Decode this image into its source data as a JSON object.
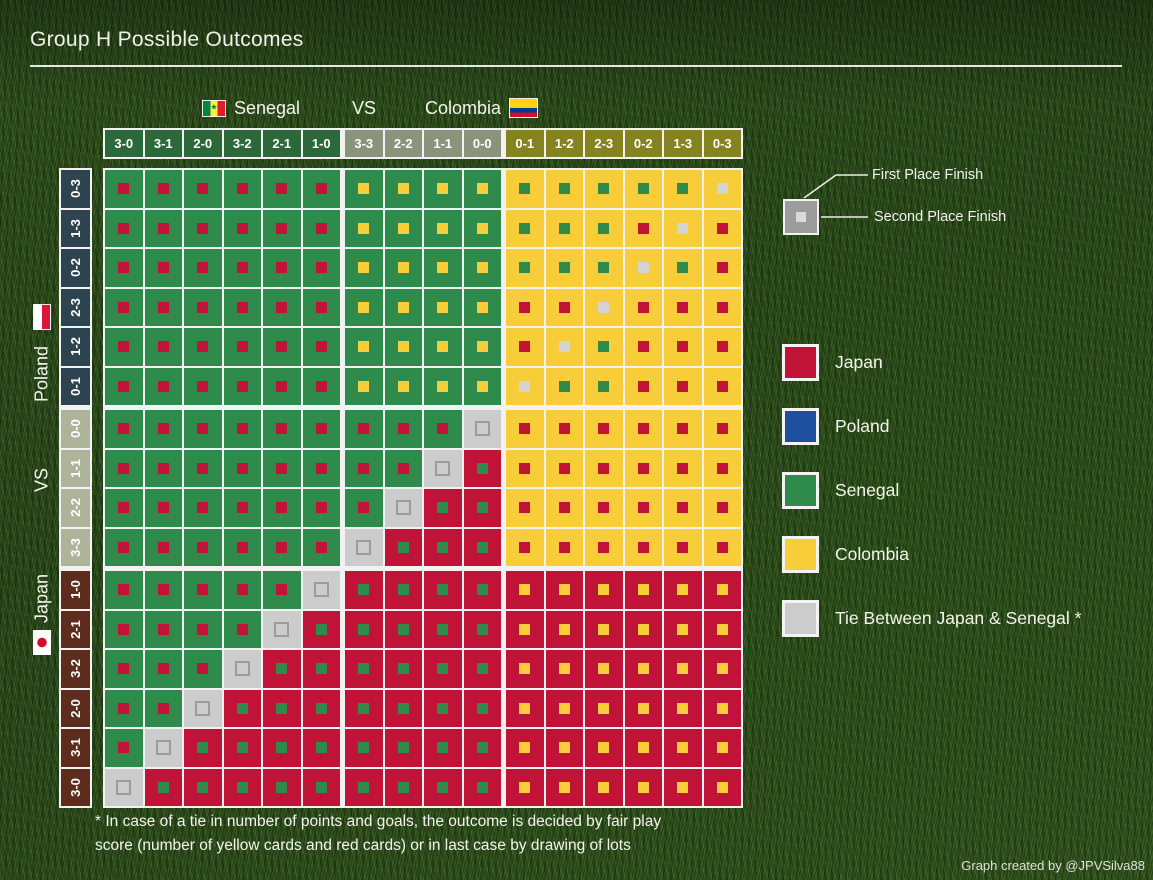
{
  "title": "Group H Possible Outcomes",
  "top_header": {
    "team1": "Senegal",
    "vs": "VS",
    "team2": "Colombia"
  },
  "side_header": {
    "team1": "Japan",
    "vs": "VS",
    "team2": "Poland"
  },
  "legend_callout": {
    "first": "First Place Finish",
    "second": "Second Place Finish"
  },
  "legend": [
    {
      "team": "Japan",
      "color": "#c11338"
    },
    {
      "team": "Poland",
      "color": "#1d4f9e"
    },
    {
      "team": "Senegal",
      "color": "#2e8b4c"
    },
    {
      "team": "Colombia",
      "color": "#f7cd3a"
    },
    {
      "team": "Tie Between Japan & Senegal *",
      "color": "#cccccc"
    }
  ],
  "footnote": {
    "line1": "* In case of a tie in number of points and goals, the outcome is decided by fair play",
    "line2": "score (number of yellow cards and red cards) or in last case by drawing of lots"
  },
  "credit": "Graph created by @JPVSilva88",
  "colors": {
    "J": "#c11338",
    "P": "#1d4f9e",
    "S": "#2e8b4c",
    "C": "#f7cd3a",
    "T": "#cccccc",
    "second_tie": "#d4d4d4",
    "tie_inner_border": "#9b9b9b",
    "example_outer": "#9c9c9c",
    "example_inner": "#dadada",
    "col_label_bg": [
      "#2b6939",
      "#8a937c",
      "#85831f"
    ],
    "row_label_bg": [
      "#2e4350",
      "#adb49a",
      "#5e2c1c"
    ]
  },
  "chart_data": {
    "type": "heatmap",
    "title": "Group H Possible Outcomes",
    "x_axis_label": "Senegal VS Colombia final score",
    "y_axis_label": "Japan VS Poland final score",
    "x_categories": [
      "3-0",
      "3-1",
      "2-0",
      "3-2",
      "2-1",
      "1-0",
      "3-3",
      "2-2",
      "1-1",
      "0-0",
      "0-1",
      "1-2",
      "2-3",
      "0-2",
      "1-3",
      "0-3"
    ],
    "y_categories": [
      "0-3",
      "1-3",
      "0-2",
      "2-3",
      "1-2",
      "0-1",
      "0-0",
      "1-1",
      "2-2",
      "3-3",
      "1-0",
      "2-1",
      "3-2",
      "2-0",
      "3-1",
      "3-0"
    ],
    "legend_position": "right",
    "cell_encoding": {
      "outer": "First Place Finish",
      "inner": "Second Place Finish",
      "J": "Japan",
      "P": "Poland",
      "S": "Senegal",
      "C": "Colombia",
      "T": "Tie Between Japan & Senegal (fair play / drawing of lots)"
    },
    "cells": [
      "SJ SJ SJ SJ SJ SJ SC SC SC SC CS CS CS CS CS CT",
      "SJ SJ SJ SJ SJ SJ SC SC SC SC CS CS CS CJ CT CJ",
      "SJ SJ SJ SJ SJ SJ SC SC SC SC CS CS CS CT CS CJ",
      "SJ SJ SJ SJ SJ SJ SC SC SC SC CJ CJ CT CJ CJ CJ",
      "SJ SJ SJ SJ SJ SJ SC SC SC SC CJ CT CS CJ CJ CJ",
      "SJ SJ SJ SJ SJ SJ SC SC SC SC CT CS CS CJ CJ CJ",
      "SJ SJ SJ SJ SJ SJ SJ SJ SJ TT CJ CJ CJ CJ CJ CJ",
      "SJ SJ SJ SJ SJ SJ SJ SJ TT JS CJ CJ CJ CJ CJ CJ",
      "SJ SJ SJ SJ SJ SJ SJ TT JS JS CJ CJ CJ CJ CJ CJ",
      "SJ SJ SJ SJ SJ SJ TT JS JS JS CJ CJ CJ CJ CJ CJ",
      "SJ SJ SJ SJ SJ TT JS JS JS JS JC JC JC JC JC JC",
      "SJ SJ SJ SJ TT JS JS JS JS JS JC JC JC JC JC JC",
      "SJ SJ SJ TT JS JS JS JS JS JS JC JC JC JC JC JC",
      "SJ SJ TT JS JS JS JS JS JS JS JC JC JC JC JC JC",
      "SJ TT JS JS JS JS JS JS JS JS JC JC JC JC JC JC",
      "TT JS JS JS JS JS JS JS JS JS JC JC JC JC JC JC"
    ]
  }
}
